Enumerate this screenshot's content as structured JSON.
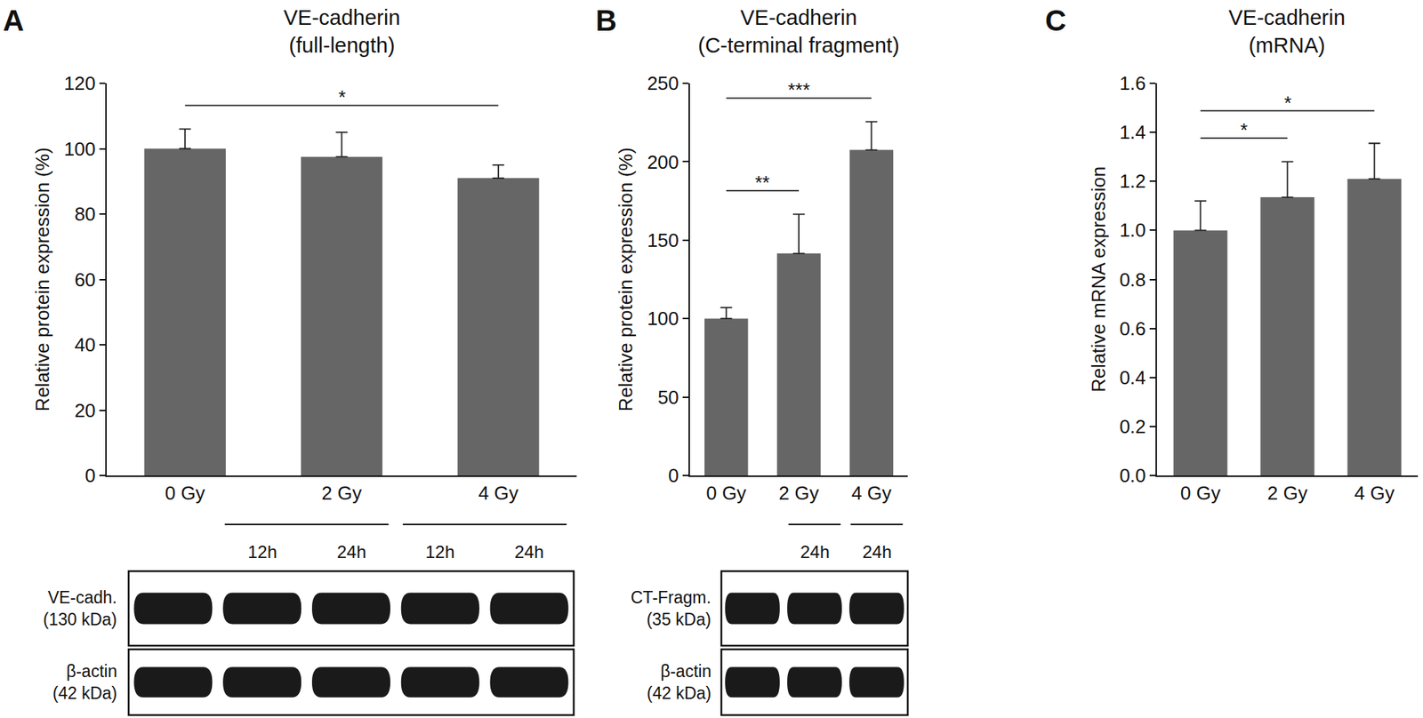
{
  "chart_data": [
    {
      "type": "bar",
      "panel": "A",
      "title": "VE-cadherin\n(full-length)",
      "y_label": "Relative protein expression (%)",
      "categories": [
        "0 Gy",
        "2 Gy",
        "4 Gy"
      ],
      "values": [
        100,
        97.5,
        91
      ],
      "errors": [
        6,
        7.5,
        4
      ],
      "color": "#666666",
      "ylim": [
        0,
        120
      ],
      "yticks": [
        0,
        20,
        40,
        60,
        80,
        100,
        120
      ],
      "grid": false,
      "significance": [
        {
          "from": "0 Gy",
          "to": "4 Gy",
          "label": "*"
        }
      ],
      "blot": {
        "lane_groups": [
          [
            null
          ],
          [
            "12h",
            "24h"
          ],
          [
            "12h",
            "24h"
          ]
        ],
        "rows": [
          "VE-cadh.\n(130 kDa)",
          "β-actin\n(42 kDa)"
        ]
      }
    },
    {
      "type": "bar",
      "panel": "B",
      "title": "VE-cadherin\n(C-terminal fragment)",
      "y_label": "Relative protein expression (%)",
      "categories": [
        "0 Gy",
        "2 Gy",
        "4 Gy"
      ],
      "values": [
        100,
        141.5,
        207.5
      ],
      "errors": [
        7,
        25,
        18
      ],
      "color": "#666666",
      "ylim": [
        0,
        250
      ],
      "yticks": [
        0,
        50,
        100,
        150,
        200,
        250
      ],
      "grid": false,
      "significance": [
        {
          "from": "0 Gy",
          "to": "2 Gy",
          "label": "**"
        },
        {
          "from": "0 Gy",
          "to": "4 Gy",
          "label": "***"
        }
      ],
      "blot": {
        "lane_groups": [
          [
            null
          ],
          [
            "24h"
          ],
          [
            "24h"
          ]
        ],
        "rows": [
          "CT-Fragm.\n(35 kDa)",
          "β-actin\n(42 kDa)"
        ]
      }
    },
    {
      "type": "bar",
      "panel": "C",
      "title": "VE-cadherin\n(mRNA)",
      "y_label": "Relative mRNA expression",
      "categories": [
        "0 Gy",
        "2 Gy",
        "4 Gy"
      ],
      "values": [
        1.0,
        1.135,
        1.21
      ],
      "errors": [
        0.12,
        0.145,
        0.145
      ],
      "color": "#666666",
      "ylim": [
        0,
        1.6
      ],
      "yticks": [
        {
          "value": 0,
          "label": "0.0"
        },
        0.2,
        0.4,
        0.6,
        0.8,
        {
          "value": 1,
          "label": "1.0"
        },
        1.2,
        1.4,
        1.6
      ],
      "grid": false,
      "significance": [
        {
          "from": "0 Gy",
          "to": "2 Gy",
          "label": "*"
        },
        {
          "from": "0 Gy",
          "to": "4 Gy",
          "label": "*"
        }
      ]
    }
  ]
}
